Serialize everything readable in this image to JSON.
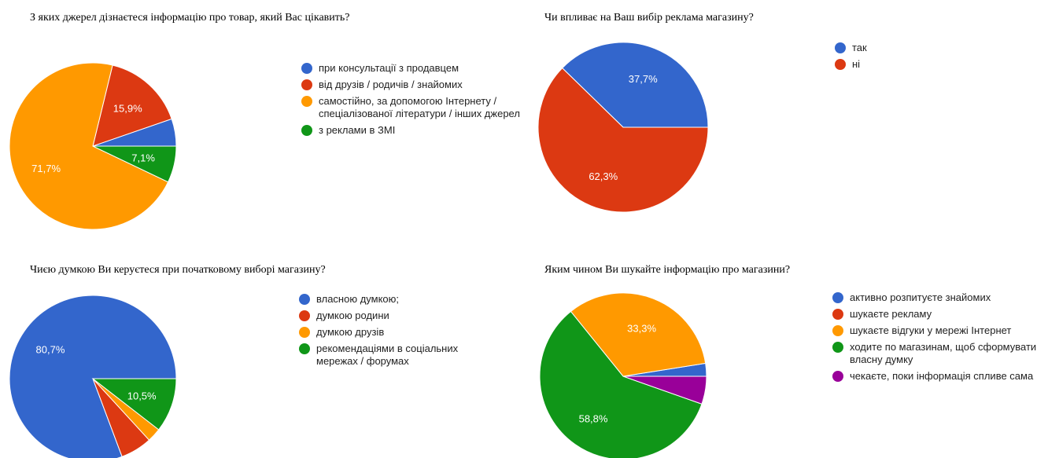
{
  "chart_data": [
    {
      "type": "pie",
      "title": "З яких джерел дізнаєтеся інформацію про товар, який Вас цікавить?",
      "categories": [
        "при консультації з продавцем",
        "від друзів / родичів / знайомих",
        "самостійно, за допомогою Інтернету / спеціалізованої літератури / інших джерел",
        "з реклами в ЗМІ"
      ],
      "values": [
        5.3,
        15.9,
        71.7,
        7.1
      ],
      "slice_labels": [
        "",
        "15,9%",
        "71,7%",
        "7,1%"
      ],
      "colors": [
        "#3366cc",
        "#dc3912",
        "#ff9900",
        "#109618"
      ],
      "legend_position": "right"
    },
    {
      "type": "pie",
      "title": "Чи впливає на Ваш вибір реклама магазину?",
      "categories": [
        "так",
        "ні"
      ],
      "values": [
        37.7,
        62.3
      ],
      "slice_labels": [
        "37,7%",
        "62,3%"
      ],
      "colors": [
        "#3366cc",
        "#dc3912"
      ],
      "legend_position": "right"
    },
    {
      "type": "pie",
      "title": "Чиєю думкою Ви керуєтеся при початковому виборі магазину?",
      "categories": [
        "власною думкою;",
        "думкою родини",
        "думкою друзів",
        "рекомендаціями в соціальних мережах / форумах"
      ],
      "values": [
        80.7,
        6.1,
        2.7,
        10.5
      ],
      "slice_labels": [
        "80,7%",
        "",
        "",
        "10,5%"
      ],
      "colors": [
        "#3366cc",
        "#dc3912",
        "#ff9900",
        "#109618"
      ],
      "legend_position": "right"
    },
    {
      "type": "pie",
      "title": "Яким чином Ви шукайте інформацію про магазини?",
      "categories": [
        "активно розпитуєте знайомих",
        "шукаєте рекламу",
        "шукаєте відгуки у мережі Інтернет",
        "ходите по магазинам, щоб сформувати власну думку",
        "чекаєте, поки інформація спливе сама"
      ],
      "values": [
        2.5,
        0,
        33.3,
        58.8,
        5.4
      ],
      "slice_labels": [
        "",
        "",
        "33,3%",
        "58,8%",
        ""
      ],
      "colors": [
        "#3366cc",
        "#dc3912",
        "#ff9900",
        "#109618",
        "#990099"
      ],
      "legend_position": "right"
    }
  ]
}
